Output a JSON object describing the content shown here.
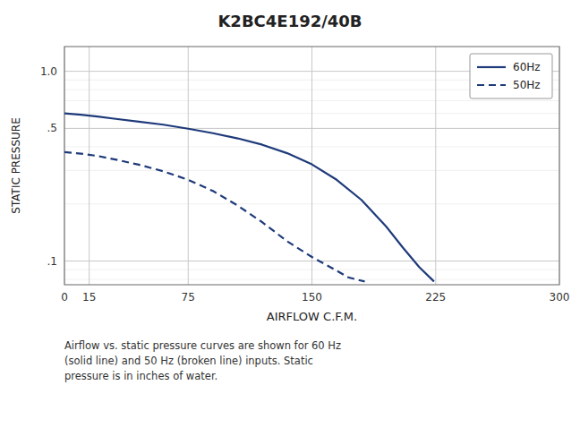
{
  "chart_data": {
    "type": "line",
    "title": "K2BC4E192/40B",
    "x_label": "AIRFLOW C.F.M.",
    "y_label": "STATIC PRESSURE",
    "caption": "Airflow vs. static pressure curves are shown for 60 Hz\n(solid line) and 50 Hz (broken line) inputs. Static\npressure is in inches of water.",
    "log": "y",
    "grid": true,
    "legend": "upper right",
    "xlim": [
      0,
      300
    ],
    "ylim": [
      0.075,
      1.35
    ],
    "xticks": [
      0,
      15,
      75,
      150,
      225,
      300
    ],
    "yticks": [
      {
        "value": 0.1,
        "label": ".1"
      },
      {
        "value": 0.5,
        "label": ".5"
      },
      {
        "value": 1.0,
        "label": "1.0"
      }
    ],
    "series": [
      {
        "name": "60Hz",
        "color": "#1e3a7a",
        "line_style": "solid",
        "x": [
          0,
          10,
          20,
          30,
          45,
          60,
          75,
          90,
          105,
          120,
          135,
          150,
          165,
          180,
          195,
          205,
          215,
          224
        ],
        "values": [
          0.6,
          0.59,
          0.578,
          0.563,
          0.543,
          0.523,
          0.498,
          0.472,
          0.443,
          0.41,
          0.37,
          0.323,
          0.268,
          0.21,
          0.152,
          0.118,
          0.093,
          0.078
        ]
      },
      {
        "name": "50Hz",
        "color": "#1e3a7a",
        "line_style": "dashed",
        "x": [
          0,
          10,
          20,
          30,
          45,
          60,
          75,
          90,
          105,
          120,
          135,
          150,
          162,
          172,
          182
        ],
        "values": [
          0.375,
          0.368,
          0.358,
          0.344,
          0.322,
          0.297,
          0.268,
          0.234,
          0.196,
          0.16,
          0.127,
          0.105,
          0.092,
          0.082,
          0.078
        ]
      }
    ]
  }
}
